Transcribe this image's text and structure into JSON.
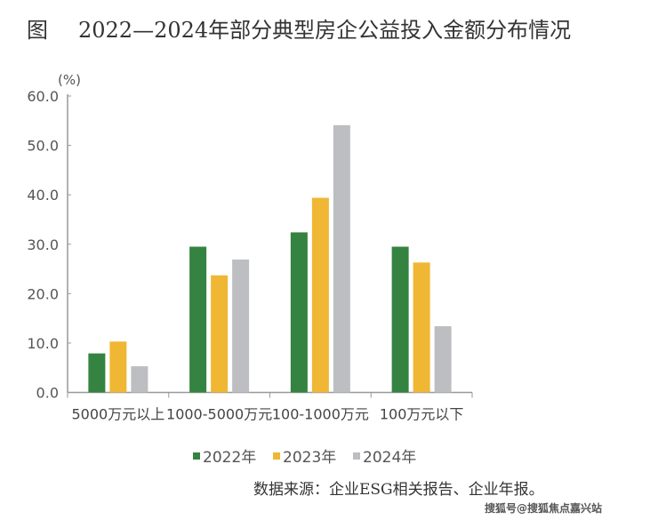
{
  "chart_data": {
    "type": "bar",
    "title_prefix": "图",
    "title": "2022—2024年部分典型房企公益投入金额分布情况",
    "ylabel": "(%)",
    "ylim": [
      0,
      60
    ],
    "yticks": [
      "0.0",
      "10.0",
      "20.0",
      "30.0",
      "40.0",
      "50.0",
      "60.0"
    ],
    "categories": [
      "5000万元以上",
      "1000-5000万元",
      "100-1000万元",
      "100万元以下"
    ],
    "series": [
      {
        "name": "2022年",
        "color": "#348340",
        "values": [
          7.9,
          29.5,
          32.4,
          29.5
        ]
      },
      {
        "name": "2023年",
        "color": "#EFB734",
        "values": [
          10.3,
          23.7,
          39.4,
          26.3
        ]
      },
      {
        "name": "2024年",
        "color": "#BDBEC2",
        "values": [
          5.3,
          26.9,
          54.1,
          13.4
        ]
      }
    ],
    "legend_position": "bottom",
    "grid": false
  },
  "source": "数据来源：企业ESG相关报告、企业年报。",
  "watermark": "搜狐号@搜狐焦点嘉兴站"
}
